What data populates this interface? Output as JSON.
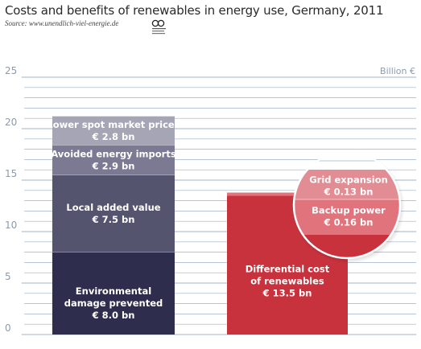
{
  "title": "Costs and benefits of renewables in energy use, Germany, 2011",
  "source": "Source: www.unendlich-viel-energie.de",
  "colors": {
    "grid": "#9fb3c8",
    "benefit_1": "#2e2d4d",
    "benefit_2": "#55546f",
    "benefit_3": "#7b7a92",
    "benefit_4": "#a6a5b6",
    "cost_main": "#c8323d",
    "cost_light": "#e0737b",
    "cost_lighter": "#e28d93"
  },
  "chart_data": {
    "type": "bar",
    "stacked": true,
    "ylim": [
      0,
      25
    ],
    "yticks": [
      0,
      5,
      10,
      15,
      20,
      25
    ],
    "ylabel": "Billion €",
    "grid": true,
    "bars": [
      {
        "segments": [
          {
            "label_line1": "Environmental",
            "label_line2": "damage prevented",
            "label_line3": "€ 8.0 bn",
            "value": 8.0,
            "color": "#2e2d4d"
          },
          {
            "label_line1": "Local added value",
            "label_line2": "€ 7.5 bn",
            "value": 7.5,
            "color": "#55546f"
          },
          {
            "label_line1": "Avoided energy imports",
            "label_line2": "€ 2.9 bn",
            "value": 2.9,
            "color": "#7b7a92"
          },
          {
            "label_line1": "Lower spot market prices",
            "label_line2": "€ 2.8 bn",
            "value": 2.8,
            "color": "#a6a5b6"
          }
        ]
      },
      {
        "segments": [
          {
            "label_line1": "Differential cost",
            "label_line2": "of renewables",
            "label_line3": "€ 13.5 bn",
            "value": 13.5,
            "color": "#c8323d"
          },
          {
            "label_line1": "Backup power",
            "label_line2": "€ 0.16 bn",
            "value": 0.16,
            "color": "#e0737b"
          },
          {
            "label_line1": "Grid expansion",
            "label_line2": "€ 0.13 bn",
            "value": 0.13,
            "color": "#e28d93"
          }
        ]
      }
    ]
  }
}
